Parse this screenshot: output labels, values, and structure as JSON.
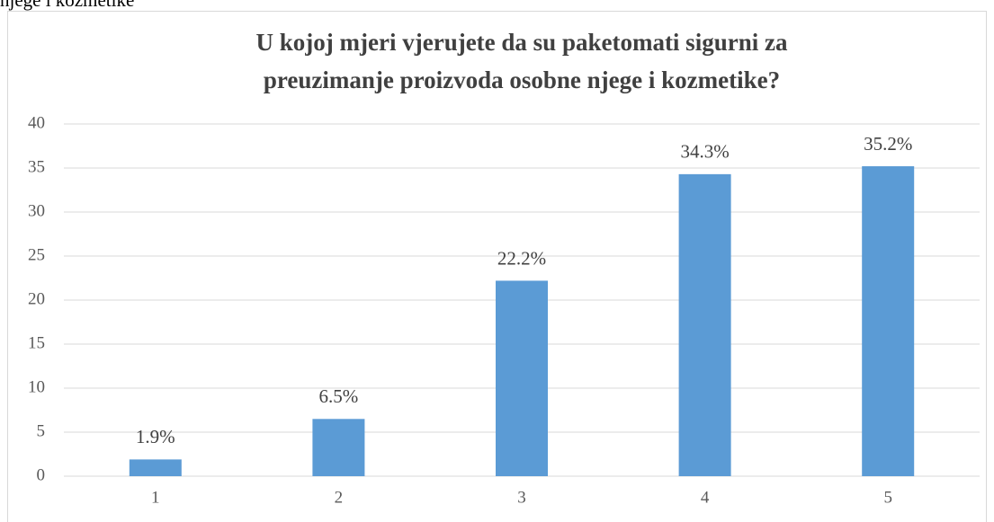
{
  "text_above": "njege i kozmetike",
  "chart_data": {
    "type": "bar",
    "title": [
      "U kojoj mjeri vjerujete da su paketomati sigurni za",
      "preuzimanje proizvoda osobne njege i kozmetike?"
    ],
    "categories": [
      "1",
      "2",
      "3",
      "4",
      "5"
    ],
    "values": [
      1.9,
      6.5,
      22.2,
      34.3,
      35.2
    ],
    "value_labels": [
      "1.9%",
      "6.5%",
      "22.2%",
      "34.3%",
      "35.2%"
    ],
    "color": "#5b9bd5",
    "ylim": [
      0,
      40
    ],
    "yticks": [
      0,
      5,
      10,
      15,
      20,
      25,
      30,
      35,
      40
    ],
    "grid": true
  }
}
